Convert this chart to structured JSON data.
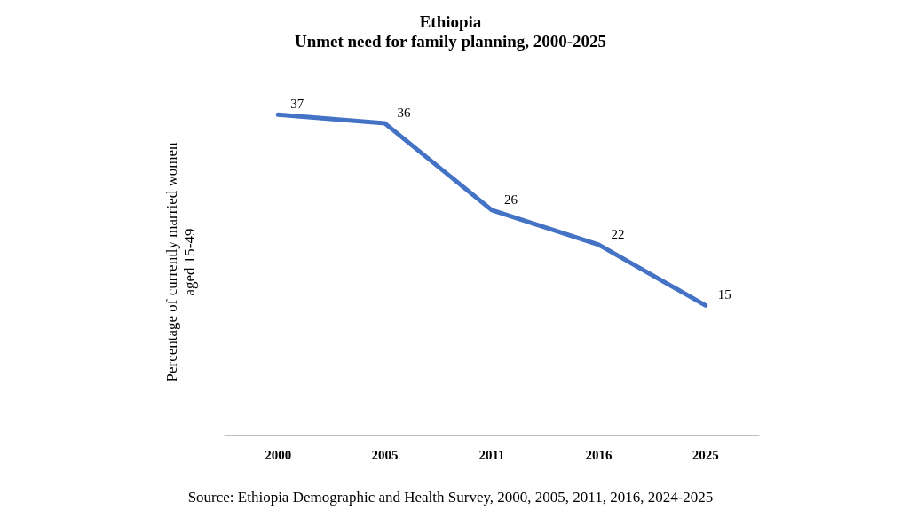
{
  "chart_data": {
    "type": "line",
    "title": "Ethiopia\nUnmet need for family planning, 2000-2025",
    "ylabel": "Percentage of currently married women\naged 15-49",
    "categories": [
      "2000",
      "2005",
      "2011",
      "2016",
      "2025"
    ],
    "series": [
      {
        "color": "#4472c4",
        "values": [
          37,
          36,
          26,
          22,
          15
        ]
      }
    ],
    "data_labels": true,
    "marker": "none",
    "line_style": "solid",
    "annotations": [
      "Source: Ethiopia Demographic and Health Survey, 2000, 2005, 2011, 2016, 2024-2025"
    ]
  }
}
